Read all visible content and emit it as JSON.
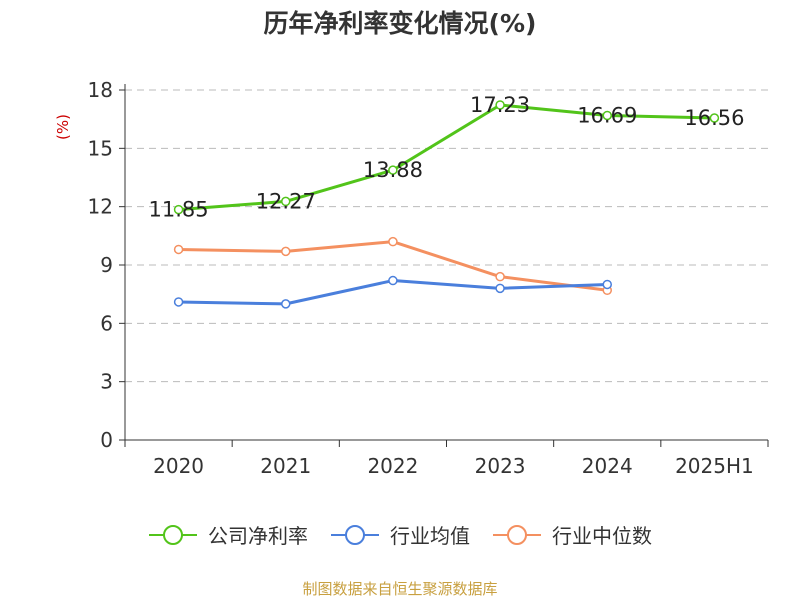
{
  "chart_data": {
    "type": "line",
    "title": "历年净利率变化情况(%)",
    "ylabel": "(%)",
    "xlabel": "",
    "categories": [
      "2020",
      "2021",
      "2022",
      "2023",
      "2024",
      "2025H1"
    ],
    "ylim": [
      0,
      18
    ],
    "yticks": [
      0,
      3,
      6,
      9,
      12,
      15,
      18
    ],
    "grid": true,
    "legend_position": "bottom",
    "series": [
      {
        "name": "公司净利率",
        "color": "#52c41a",
        "values": [
          11.85,
          12.27,
          13.88,
          17.23,
          16.69,
          16.56
        ],
        "show_labels": true
      },
      {
        "name": "行业均值",
        "color": "#4a7fdc",
        "values": [
          7.1,
          7.0,
          8.2,
          7.8,
          8.0,
          null
        ],
        "show_labels": false
      },
      {
        "name": "行业中位数",
        "color": "#f49060",
        "values": [
          9.8,
          9.7,
          10.2,
          8.4,
          7.7,
          null
        ],
        "show_labels": false
      }
    ]
  },
  "colors": {
    "ylabel": "#cc0000",
    "source": "#c8a040",
    "axis": "#333333",
    "grid": "#bbbbbb"
  },
  "source_note": "制图数据来自恒生聚源数据库"
}
